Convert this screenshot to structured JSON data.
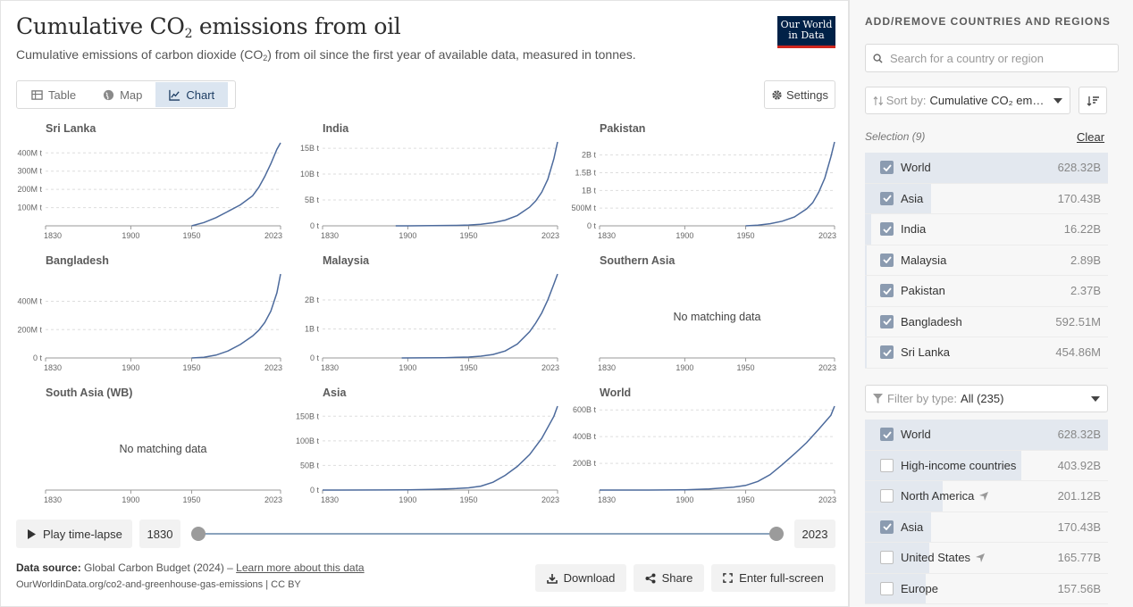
{
  "header": {
    "title_main": "Cumulative CO",
    "title_sub": "2",
    "title_rest": " emissions from oil",
    "subtitle_a": "Cumulative emissions of carbon dioxide (CO",
    "subtitle_sub": "2",
    "subtitle_b": ") from oil since the first year of available data, measured in tonnes.",
    "logo_line1": "Our World",
    "logo_line2": "in Data"
  },
  "tabs": [
    {
      "label": "Table",
      "icon": "table-icon"
    },
    {
      "label": "Map",
      "icon": "globe-icon"
    },
    {
      "label": "Chart",
      "icon": "line-chart-icon",
      "active": true
    }
  ],
  "settings_label": "Settings",
  "chart_data": [
    {
      "type": "line",
      "title": "Sri Lanka",
      "xticks": [
        "1830",
        "1900",
        "1950",
        "2023"
      ],
      "ylim": [
        0,
        460000000
      ],
      "yticks": [
        {
          "v": 100000000,
          "l": "100M t"
        },
        {
          "v": 200000000,
          "l": "200M t"
        },
        {
          "v": 300000000,
          "l": "300M t"
        },
        {
          "v": 400000000,
          "l": "400M t"
        }
      ],
      "x": [
        1950,
        1960,
        1970,
        1980,
        1990,
        2000,
        2005,
        2010,
        2015,
        2020,
        2023
      ],
      "y": [
        0,
        18000000,
        45000000,
        80000000,
        115000000,
        165000000,
        210000000,
        270000000,
        340000000,
        420000000,
        455000000
      ]
    },
    {
      "type": "line",
      "title": "India",
      "xticks": [
        "1830",
        "1900",
        "1950",
        "2023"
      ],
      "ylim": [
        0,
        16220000000
      ],
      "yticks": [
        {
          "v": 0,
          "l": "0 t"
        },
        {
          "v": 5000000000,
          "l": "5B t"
        },
        {
          "v": 10000000000,
          "l": "10B t"
        },
        {
          "v": 15000000000,
          "l": "15B t"
        }
      ],
      "x": [
        1890,
        1900,
        1920,
        1940,
        1950,
        1960,
        1970,
        1980,
        1990,
        2000,
        2005,
        2010,
        2015,
        2020,
        2023
      ],
      "y": [
        0,
        5000000,
        30000000,
        80000000,
        150000000,
        300000000,
        600000000,
        1100000000,
        2000000000,
        3600000000,
        4800000000,
        6500000000,
        9000000000,
        13000000000,
        16220000000
      ]
    },
    {
      "type": "line",
      "title": "Pakistan",
      "xticks": [
        "1830",
        "1900",
        "1950",
        "2023"
      ],
      "ylim": [
        0,
        2370000000
      ],
      "yticks": [
        {
          "v": 0,
          "l": "0 t"
        },
        {
          "v": 500000000,
          "l": "500M t"
        },
        {
          "v": 1000000000,
          "l": "1B t"
        },
        {
          "v": 1500000000,
          "l": "1.5B t"
        },
        {
          "v": 2000000000,
          "l": "2B t"
        }
      ],
      "x": [
        1950,
        1960,
        1970,
        1980,
        1990,
        2000,
        2005,
        2010,
        2015,
        2020,
        2023
      ],
      "y": [
        0,
        20000000,
        60000000,
        130000000,
        250000000,
        480000000,
        650000000,
        950000000,
        1350000000,
        1950000000,
        2370000000
      ]
    },
    {
      "type": "line",
      "title": "Bangladesh",
      "xticks": [
        "1830",
        "1900",
        "1950",
        "2023"
      ],
      "ylim": [
        0,
        592510000
      ],
      "yticks": [
        {
          "v": 0,
          "l": "0 t"
        },
        {
          "v": 200000000,
          "l": "200M t"
        },
        {
          "v": 400000000,
          "l": "400M t"
        }
      ],
      "x": [
        1950,
        1960,
        1970,
        1980,
        1990,
        2000,
        2005,
        2010,
        2015,
        2020,
        2023
      ],
      "y": [
        0,
        5000000,
        20000000,
        50000000,
        95000000,
        155000000,
        195000000,
        250000000,
        330000000,
        460000000,
        592510000
      ]
    },
    {
      "type": "line",
      "title": "Malaysia",
      "xticks": [
        "1830",
        "1900",
        "1950",
        "2023"
      ],
      "ylim": [
        0,
        2890000000
      ],
      "yticks": [
        {
          "v": 0,
          "l": "0 t"
        },
        {
          "v": 1000000000,
          "l": "1B t"
        },
        {
          "v": 2000000000,
          "l": "2B t"
        }
      ],
      "x": [
        1895,
        1910,
        1930,
        1950,
        1960,
        1970,
        1980,
        1990,
        2000,
        2005,
        2010,
        2015,
        2020,
        2023
      ],
      "y": [
        0,
        2000000,
        8000000,
        30000000,
        60000000,
        120000000,
        240000000,
        480000000,
        900000000,
        1200000000,
        1550000000,
        2000000000,
        2550000000,
        2890000000
      ]
    },
    {
      "type": "line",
      "title": "Southern Asia",
      "xticks": [
        "1830",
        "1900",
        "1950",
        "2023"
      ],
      "no_data": "No matching data",
      "x": [],
      "y": []
    },
    {
      "type": "line",
      "title": "South Asia (WB)",
      "xticks": [
        "1830",
        "1900",
        "1950",
        "2023"
      ],
      "no_data": "No matching data",
      "x": [],
      "y": []
    },
    {
      "type": "line",
      "title": "Asia",
      "xticks": [
        "1830",
        "1900",
        "1950",
        "2023"
      ],
      "ylim": [
        0,
        170430000000
      ],
      "yticks": [
        {
          "v": 0,
          "l": "0 t"
        },
        {
          "v": 50000000000,
          "l": "50B t"
        },
        {
          "v": 100000000000,
          "l": "100B t"
        },
        {
          "v": 150000000000,
          "l": "150B t"
        }
      ],
      "x": [
        1830,
        1880,
        1900,
        1920,
        1940,
        1950,
        1960,
        1970,
        1980,
        1990,
        2000,
        2010,
        2020,
        2023
      ],
      "y": [
        0,
        100000000,
        500000000,
        1200000000,
        3000000000,
        4500000000,
        8000000000,
        16000000000,
        30000000000,
        48000000000,
        72000000000,
        105000000000,
        150000000000,
        170430000000
      ]
    },
    {
      "type": "line",
      "title": "World",
      "xticks": [
        "1830",
        "1900",
        "1950",
        "2023"
      ],
      "ylim": [
        0,
        628320000000
      ],
      "yticks": [
        {
          "v": 200000000000,
          "l": "200B t"
        },
        {
          "v": 400000000000,
          "l": "400B t"
        },
        {
          "v": 600000000000,
          "l": "600B t"
        }
      ],
      "x": [
        1830,
        1870,
        1900,
        1920,
        1940,
        1950,
        1960,
        1970,
        1980,
        1990,
        2000,
        2010,
        2020,
        2023
      ],
      "y": [
        0,
        100000000,
        2000000000,
        8000000000,
        22000000000,
        35000000000,
        65000000000,
        115000000000,
        190000000000,
        270000000000,
        355000000000,
        455000000000,
        560000000000,
        628320000000
      ]
    }
  ],
  "controls": {
    "play_label": "Play time-lapse",
    "start_year": "1830",
    "end_year": "2023"
  },
  "footer": {
    "source_label": "Data source:",
    "source_value": "Global Carbon Budget (2024) –",
    "learn_more": "Learn more about this data",
    "url": "OurWorldinData.org/co2-and-greenhouse-gas-emissions | CC BY",
    "download": "Download",
    "share": "Share",
    "fullscreen": "Enter full-screen"
  },
  "sidebar": {
    "title": "ADD/REMOVE COUNTRIES AND REGIONS",
    "search_placeholder": "Search for a country or region",
    "sort_label": "Sort by:",
    "sort_value": "Cumulative CO₂ emis...",
    "selection_label": "Selection (9)",
    "clear_label": "Clear",
    "selection": [
      {
        "name": "World",
        "value": "628.32B",
        "checked": true,
        "share": 1.0
      },
      {
        "name": "Asia",
        "value": "170.43B",
        "checked": true,
        "share": 0.271
      },
      {
        "name": "India",
        "value": "16.22B",
        "checked": true,
        "share": 0.026
      },
      {
        "name": "Malaysia",
        "value": "2.89B",
        "checked": true,
        "share": 0.005
      },
      {
        "name": "Pakistan",
        "value": "2.37B",
        "checked": true,
        "share": 0.004
      },
      {
        "name": "Bangladesh",
        "value": "592.51M",
        "checked": true,
        "share": 0.001
      },
      {
        "name": "Sri Lanka",
        "value": "454.86M",
        "checked": true,
        "share": 0.001
      }
    ],
    "filter_label": "Filter by type:",
    "filter_value": "All (235)",
    "all_items": [
      {
        "name": "World",
        "value": "628.32B",
        "checked": true,
        "share": 1.0
      },
      {
        "name": "High-income countries",
        "value": "403.92B",
        "checked": false,
        "share": 0.643
      },
      {
        "name": "North America",
        "value": "201.12B",
        "checked": false,
        "share": 0.32,
        "icon": "location-arrow-icon"
      },
      {
        "name": "Asia",
        "value": "170.43B",
        "checked": true,
        "share": 0.271
      },
      {
        "name": "United States",
        "value": "165.77B",
        "checked": false,
        "share": 0.264,
        "icon": "location-arrow-icon"
      },
      {
        "name": "Europe",
        "value": "157.56B",
        "checked": false,
        "share": 0.251
      }
    ]
  },
  "colors": {
    "line": "#4c6a9c",
    "accent": "#1d3d63",
    "bar": "#e3e8ef",
    "checkbox": "#8b9bb0"
  }
}
